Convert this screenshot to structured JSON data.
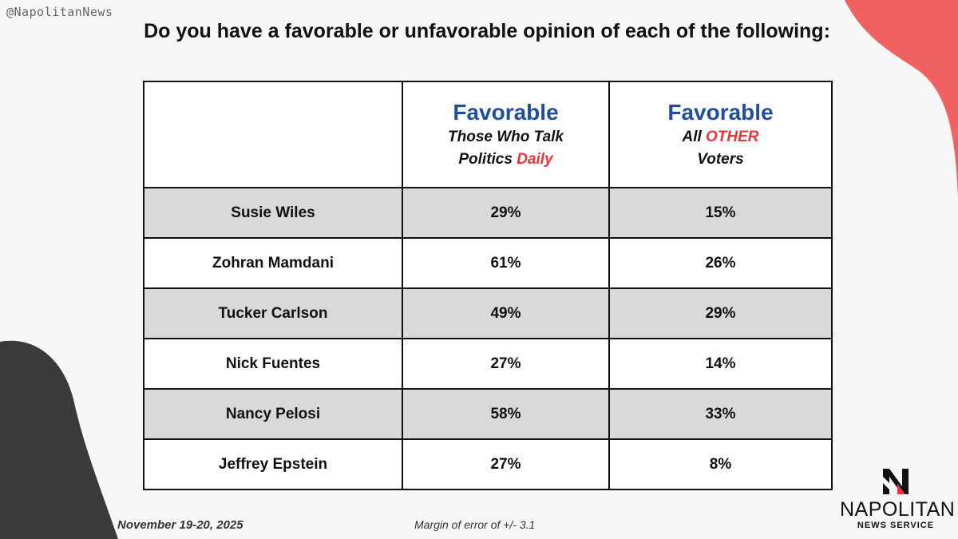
{
  "handle": "@NapolitanNews",
  "title": "Do you have a favorable or unfavorable opinion of each of the following:",
  "columns": [
    {
      "main": "Favorable",
      "sub_line1": "Those Who Talk",
      "sub_line2_prefix": "Politics ",
      "sub_line2_accent": "Daily",
      "sub_line3": ""
    },
    {
      "main": "Favorable",
      "sub_line1_prefix": "All ",
      "sub_line1_accent": "OTHER",
      "sub_line2": "Voters"
    }
  ],
  "rows": [
    {
      "name": "Susie Wiles",
      "daily": "29%",
      "other": "15%"
    },
    {
      "name": "Zohran Mamdani",
      "daily": "61%",
      "other": "26%"
    },
    {
      "name": "Tucker Carlson",
      "daily": "49%",
      "other": "29%"
    },
    {
      "name": "Nick Fuentes",
      "daily": "27%",
      "other": "14%"
    },
    {
      "name": "Nancy Pelosi",
      "daily": "58%",
      "other": "33%"
    },
    {
      "name": "Jeffrey Epstein",
      "daily": "27%",
      "other": "8%"
    }
  ],
  "footer": {
    "date": "November 19-20, 2025",
    "moe": "Margin of error of +/- 3.1"
  },
  "logo": {
    "icon": "napolitan-n-logo-icon",
    "name": "NAPOLITAN",
    "sub": "NEWS SERVICE"
  },
  "colors": {
    "header_blue": "#1f4e9e",
    "accent_red": "#e8353a",
    "shade": "#d9d9d9",
    "blob_coral": "#f26161",
    "blob_dark": "#3a3a3a"
  },
  "chart_data": {
    "type": "table",
    "title": "Do you have a favorable or unfavorable opinion of each of the following:",
    "categories": [
      "Susie Wiles",
      "Zohran Mamdani",
      "Tucker Carlson",
      "Nick Fuentes",
      "Nancy Pelosi",
      "Jeffrey Epstein"
    ],
    "series": [
      {
        "name": "Favorable Those Who Talk Politics Daily",
        "values": [
          29,
          61,
          49,
          27,
          58,
          27
        ]
      },
      {
        "name": "Favorable All OTHER Voters",
        "values": [
          15,
          26,
          29,
          14,
          33,
          8
        ]
      }
    ],
    "unit": "%"
  }
}
